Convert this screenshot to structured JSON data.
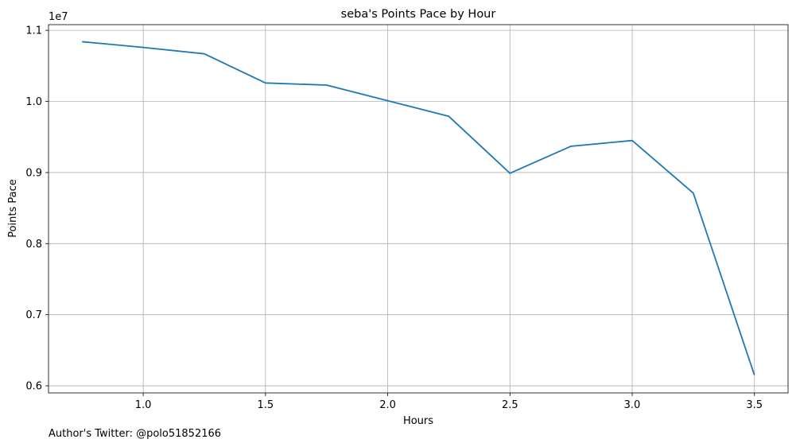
{
  "chart_data": {
    "type": "line",
    "title": "seba's Points Pace by Hour",
    "xlabel": "Hours",
    "ylabel": "Points Pace",
    "y_offset_label": "1e7",
    "xlim": [
      0.6125,
      3.6375
    ],
    "ylim": [
      5.9,
      11.08
    ],
    "x_ticks": [
      1.0,
      1.5,
      2.0,
      2.5,
      3.0,
      3.5
    ],
    "x_tick_labels": [
      "1.0",
      "1.5",
      "2.0",
      "2.5",
      "3.0",
      "3.5"
    ],
    "y_ticks": [
      6.0,
      7.0,
      8.0,
      9.0,
      10.0,
      11.0
    ],
    "y_tick_labels": [
      "0.6",
      "0.7",
      "0.8",
      "0.9",
      "1.0",
      "1.1"
    ],
    "grid": true,
    "series": [
      {
        "color": "#1f77b4",
        "x": [
          0.75,
          1.0,
          1.25,
          1.5,
          1.75,
          2.0,
          2.25,
          2.5,
          2.75,
          3.0,
          3.25,
          3.5
        ],
        "values": [
          10.84,
          10.76,
          10.67,
          10.26,
          10.23,
          10.01,
          9.79,
          8.99,
          9.37,
          9.45,
          8.71,
          6.15
        ]
      }
    ]
  },
  "footer": {
    "text": "Author's Twitter: @polo51852166"
  }
}
